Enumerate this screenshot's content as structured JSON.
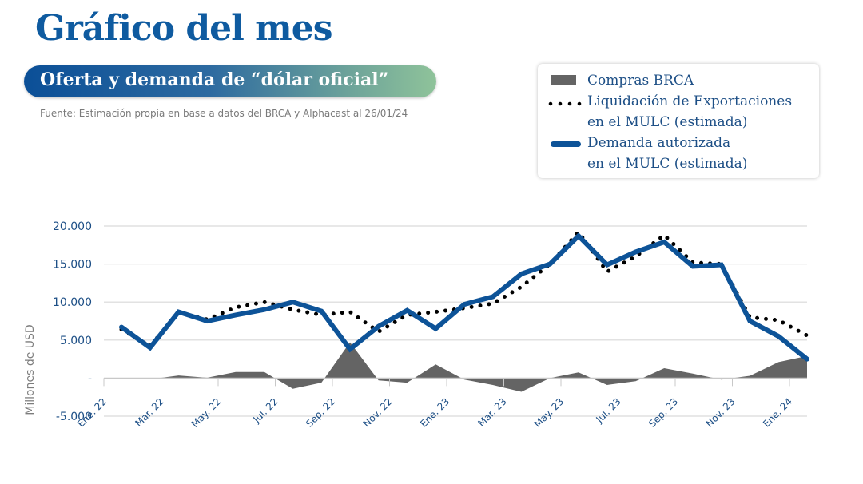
{
  "header": {
    "title": "Gráfico del mes",
    "subtitle": "Oferta y demanda de “dólar oficial”",
    "source": "Fuente: Estimación propia en base a datos del BRCA y Alphacast al 26/01/24"
  },
  "legend": {
    "items": [
      {
        "label_lines": [
          "Compras BRCA"
        ],
        "swatch": "area",
        "color": "#646464"
      },
      {
        "label_lines": [
          "Liquidación de Exportaciones",
          "en el MULC (estimada)"
        ],
        "swatch": "dotted",
        "color": "#000000"
      },
      {
        "label_lines": [
          "Demanda autorizada",
          "en el MULC (estimada)"
        ],
        "swatch": "line",
        "color": "#0d5398"
      }
    ]
  },
  "colors": {
    "brand": "#0f5ba0",
    "compras": "#646464",
    "liquidacion": "#000000",
    "demanda": "#0d5398",
    "grid": "#d9d9d9"
  },
  "chart_data": {
    "type": "line",
    "title": "Oferta y demanda de “dólar oficial”",
    "xlabel": "",
    "ylabel": "Millones de USD",
    "ylim": [
      -5000,
      20000
    ],
    "yticks": [
      20000,
      15000,
      10000,
      5000,
      0,
      -5000
    ],
    "ytick_labels": [
      "20.000",
      "15.000",
      "10.000",
      "5.000",
      "-",
      "-5.000"
    ],
    "grid": true,
    "legend_position": "top-right",
    "x": [
      "Ene. 22",
      "Feb. 22",
      "Mar. 22",
      "Abr. 22",
      "May. 22",
      "Jun. 22",
      "Jul. 22",
      "Ago. 22",
      "Sep. 22",
      "Oct. 22",
      "Nov. 22",
      "Dic. 22",
      "Ene. 23",
      "Feb. 23",
      "Mar. 23",
      "Abr. 23",
      "May. 23",
      "Jun. 23",
      "Jul. 23",
      "Ago. 23",
      "Sep. 23",
      "Oct. 23",
      "Nov. 23",
      "Dic. 23",
      "Ene. 24"
    ],
    "xtick_labels": [
      "Ene. 22",
      "Mar. 22",
      "May. 22",
      "Jul. 22",
      "Sep. 22",
      "Nov. 22",
      "Ene. 23",
      "Mar. 23",
      "May. 23",
      "Jul. 23",
      "Sep. 23",
      "Nov. 23",
      "Ene. 24"
    ],
    "series": [
      {
        "name": "Compras BRCA",
        "type": "area",
        "values": [
          -150,
          -150,
          350,
          50,
          800,
          800,
          -1400,
          -600,
          4700,
          -300,
          -600,
          1800,
          -200,
          -900,
          -1800,
          0,
          750,
          -900,
          -400,
          1300,
          600,
          -200,
          300,
          2100,
          2900
        ]
      },
      {
        "name": "Liquidación de Exportaciones en el MULC (estimada)",
        "type": "dotted",
        "values": [
          6400,
          4200,
          8600,
          7700,
          9300,
          10000,
          9000,
          8300,
          8700,
          6100,
          8300,
          8700,
          9200,
          9800,
          12000,
          15000,
          19200,
          14000,
          16000,
          18800,
          15200,
          15000,
          8000,
          7600,
          5600
        ]
      },
      {
        "name": "Demanda autorizada en el MULC (estimada)",
        "type": "line",
        "values": [
          6700,
          4000,
          8700,
          7500,
          8300,
          9000,
          10000,
          8800,
          3800,
          6800,
          8900,
          6500,
          9700,
          10700,
          13700,
          15000,
          18700,
          14900,
          16600,
          17900,
          14700,
          14900,
          7500,
          5500,
          2500
        ]
      }
    ]
  }
}
